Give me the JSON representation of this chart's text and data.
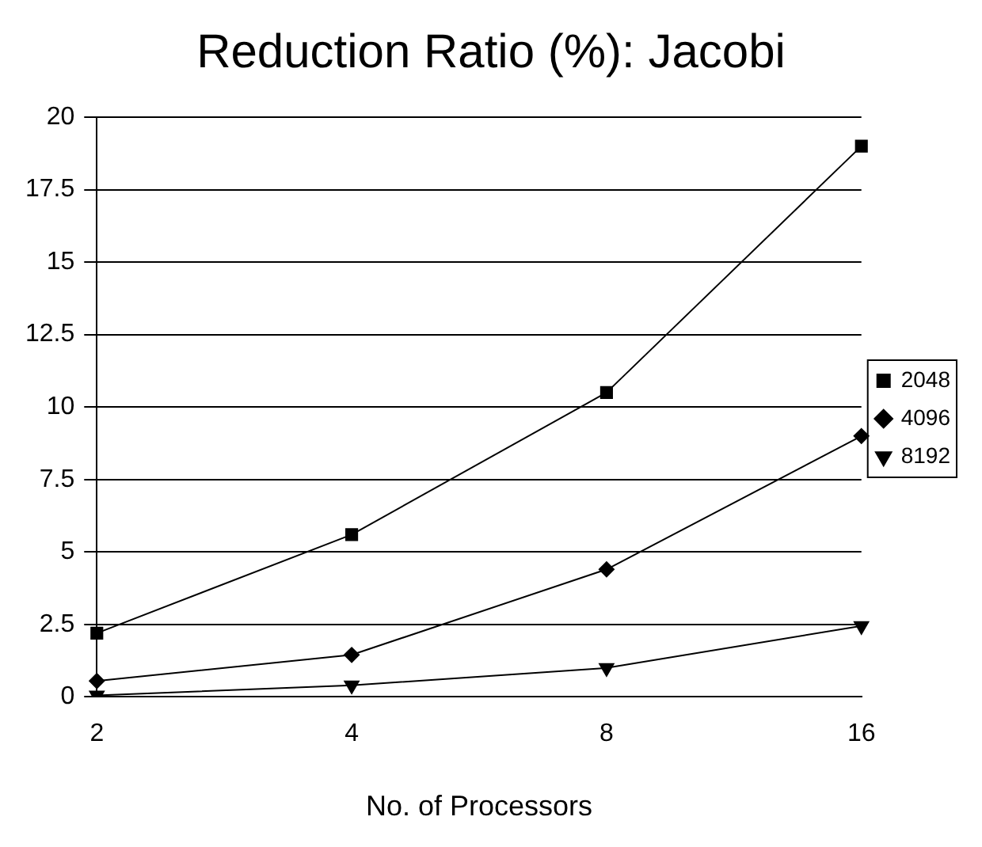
{
  "chart_data": {
    "type": "line",
    "title": "Reduction Ratio (%): Jacobi",
    "xlabel": "No. of Processors",
    "categories": [
      "2",
      "4",
      "8",
      "16"
    ],
    "series": [
      {
        "name": "2048",
        "color": "#000000",
        "marker": "square",
        "values": [
          2.2,
          5.6,
          10.5,
          19.0
        ]
      },
      {
        "name": "4096",
        "color": "#000000",
        "marker": "diamond",
        "values": [
          0.55,
          1.45,
          4.4,
          9.0
        ]
      },
      {
        "name": "8192",
        "color": "#000000",
        "marker": "triangle-down",
        "values": [
          0.05,
          0.4,
          1.0,
          2.45
        ]
      }
    ],
    "ylim": [
      0,
      20
    ],
    "yticks": [
      0,
      2.5,
      5,
      7.5,
      10,
      12.5,
      15,
      17.5,
      20
    ],
    "grid": "y",
    "legend": "right",
    "line_style": "solid"
  }
}
